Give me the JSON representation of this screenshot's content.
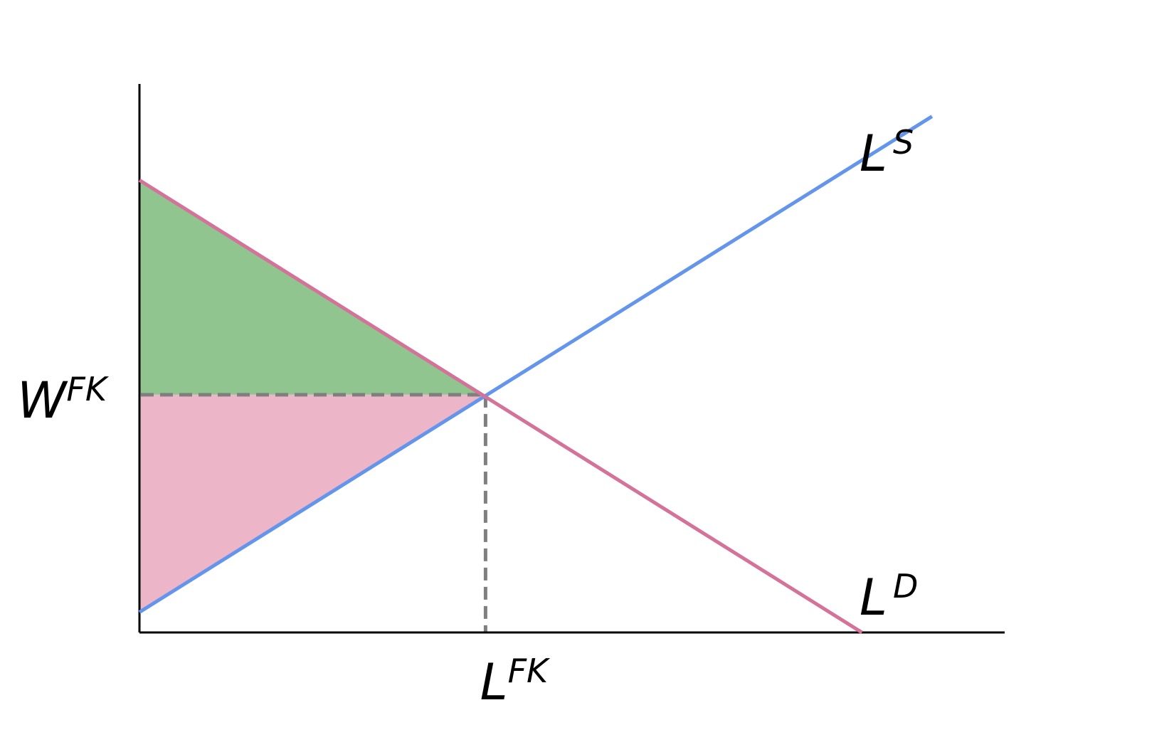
{
  "chart_data": {
    "type": "line",
    "title": "",
    "xlabel": "",
    "ylabel": "",
    "xlim": [
      0,
      10
    ],
    "ylim": [
      0,
      10
    ],
    "equilibrium": {
      "x": 4,
      "y": 4.1,
      "x_label": {
        "base": "L",
        "sup": "FK"
      },
      "y_label": {
        "base": "W",
        "sup": "FK"
      }
    },
    "series": [
      {
        "id": "supply",
        "label": {
          "base": "L",
          "sup": "S"
        },
        "color": "#6495ed",
        "points": [
          [
            0,
            0.35
          ],
          [
            9.16,
            8.9
          ]
        ]
      },
      {
        "id": "demand",
        "label": {
          "base": "L",
          "sup": "D"
        },
        "color": "#d4729a",
        "points": [
          [
            0,
            7.8
          ],
          [
            8.35,
            0
          ]
        ]
      }
    ],
    "areas": [
      {
        "id": "upper-surplus",
        "color": "#90c590",
        "points": [
          [
            0,
            7.8
          ],
          [
            4,
            4.1
          ],
          [
            0,
            4.1
          ]
        ]
      },
      {
        "id": "lower-surplus",
        "color": "#ecb5c8",
        "points": [
          [
            0,
            4.1
          ],
          [
            4,
            4.1
          ],
          [
            0,
            0.35
          ]
        ]
      }
    ],
    "guide_color": "#7f7f7f",
    "axis_color": "#000000"
  }
}
